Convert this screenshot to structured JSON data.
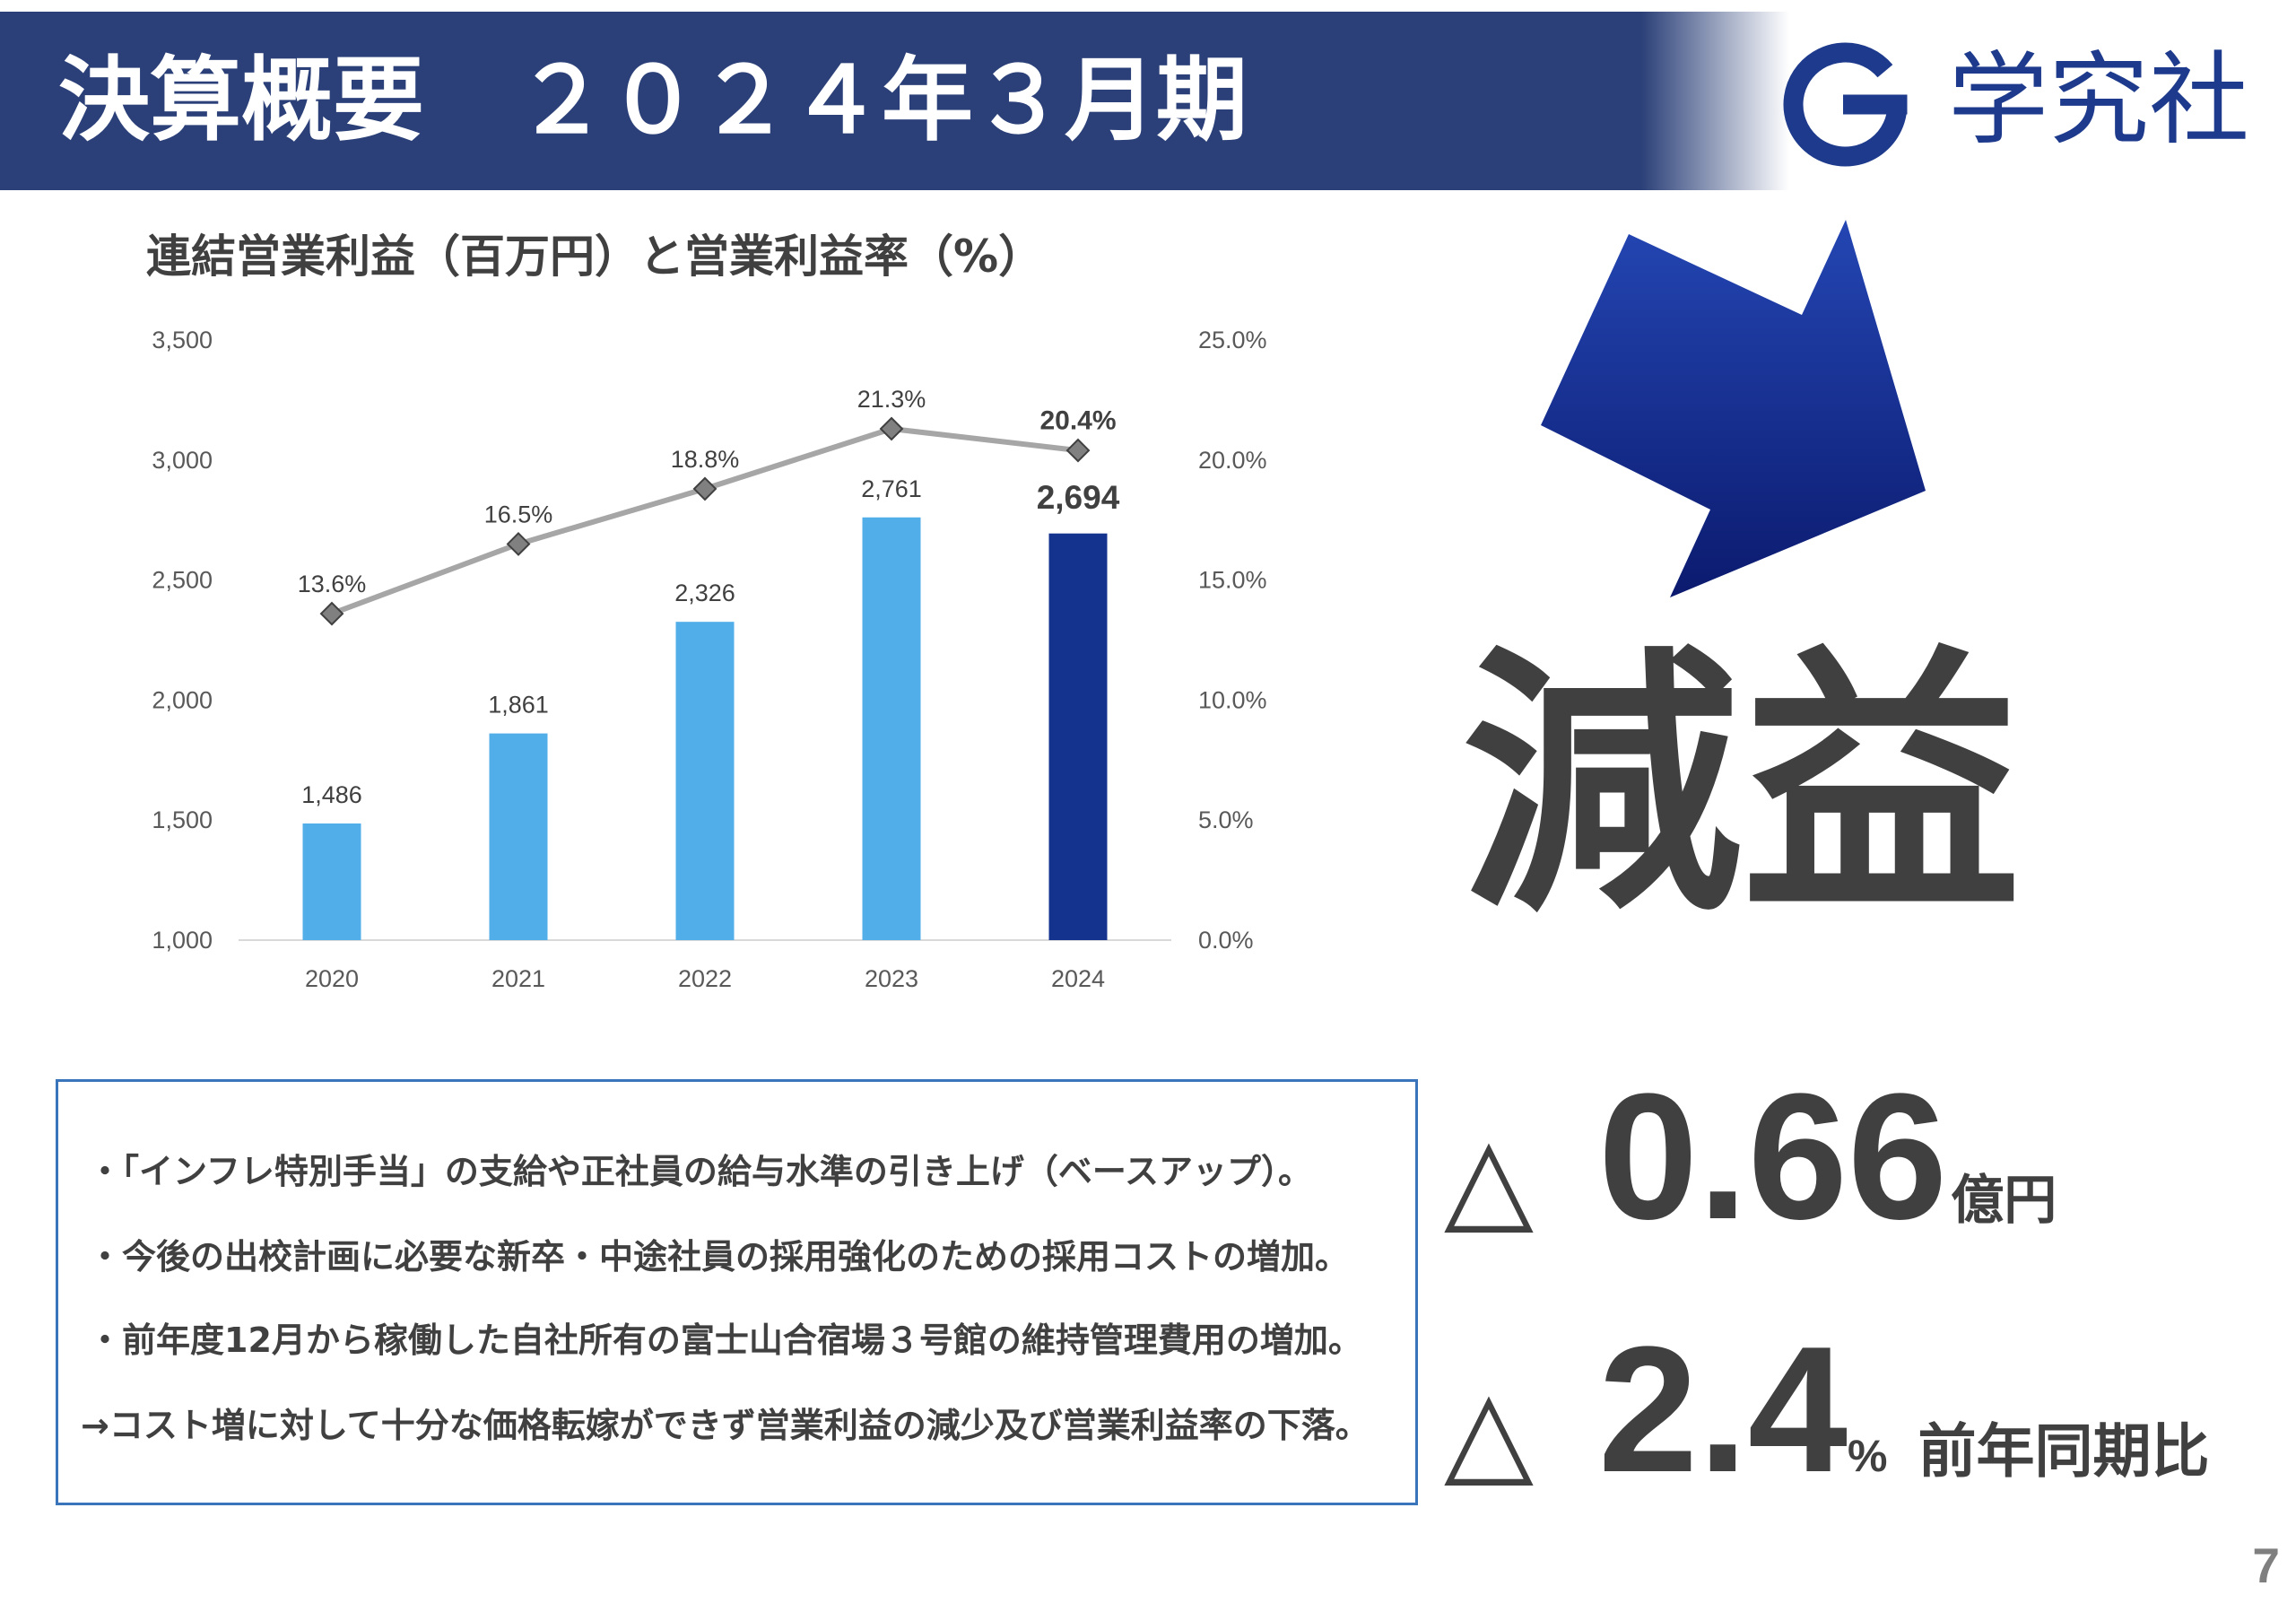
{
  "header": {
    "title": "決算概要　２０２４年３月期",
    "background_color": "#2b4078"
  },
  "logo": {
    "icon": "gakkyusha-logo-mark",
    "name": "学究社",
    "color": "#1d3a8c"
  },
  "chart_data": {
    "type": "bar",
    "title": "連結営業利益（百万円）と営業利益率（%）",
    "categories": [
      "2020",
      "2021",
      "2022",
      "2023",
      "2024"
    ],
    "series": [
      {
        "type": "bar",
        "axis": "left",
        "values": [
          1486,
          1861,
          2326,
          2761,
          2694
        ],
        "data_labels": [
          "1,486",
          "1,861",
          "2,326",
          "2,761",
          "2,694"
        ],
        "colors": [
          "#52aee9",
          "#52aee9",
          "#52aee9",
          "#52aee9",
          "#14338f"
        ]
      },
      {
        "type": "line",
        "axis": "right",
        "values": [
          13.6,
          16.5,
          18.8,
          21.3,
          20.4
        ],
        "data_labels": [
          "13.6%",
          "16.5%",
          "18.8%",
          "21.3%",
          "20.4%"
        ],
        "color": "#a6a6a6",
        "marker": "diamond",
        "marker_color": "#808080"
      }
    ],
    "ylim": [
      1000,
      3500
    ],
    "y_ticks": [
      1000,
      1500,
      2000,
      2500,
      3000,
      3500
    ],
    "y_tick_labels": [
      "1,000",
      "1,500",
      "2,000",
      "2,500",
      "3,000",
      "3,500"
    ],
    "y2lim": [
      0,
      25
    ],
    "y2_ticks": [
      0,
      5,
      10,
      15,
      20,
      25
    ],
    "y2_tick_labels": [
      "0.0%",
      "5.0%",
      "10.0%",
      "15.0%",
      "20.0%",
      "25.0%"
    ],
    "grid": false,
    "emphasized_index": 4
  },
  "arrow": {
    "icon": "down-right-arrow-icon",
    "gradient": [
      "#2446b3",
      "#0b1a6e"
    ]
  },
  "headline": "減益",
  "reasons": {
    "border_color": "#3a74ba",
    "lines": [
      "・「インフレ特別手当」の支給や正社員の給与水準の引き上げ（ベースアップ）。",
      "・今後の出校計画に必要な新卒・中途社員の採用強化のための採用コストの増加。",
      "・前年度12月から稼働した自社所有の富士山合宿場３号館の維持管理費用の増加。",
      "→コスト増に対して十分な価格転嫁ができず営業利益の減少及び営業利益率の下落。"
    ]
  },
  "stats": [
    {
      "prefix": "△",
      "value": "0.66",
      "unit": "億円"
    },
    {
      "prefix": "△",
      "value": "2.4",
      "unit": "%",
      "note": "前年同期比"
    }
  ],
  "page_number": "7"
}
